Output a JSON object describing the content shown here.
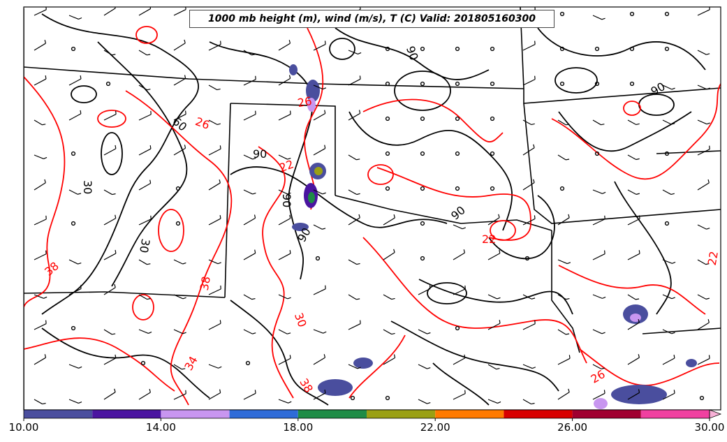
{
  "title": "1000 mb height (m), wind (m/s), T (C) Valid: 201805160300",
  "colorbar": {
    "ticks": [
      "10.00",
      "14.00",
      "18.00",
      "22.00",
      "26.00",
      "30.00"
    ],
    "bins": [
      {
        "from": 10,
        "to": 12,
        "color": "#4a4e9e"
      },
      {
        "from": 12,
        "to": 14,
        "color": "#4a14a0"
      },
      {
        "from": 14,
        "to": 16,
        "color": "#c896f0"
      },
      {
        "from": 16,
        "to": 18,
        "color": "#2e6bd8"
      },
      {
        "from": 18,
        "to": 20,
        "color": "#1e8c46"
      },
      {
        "from": 20,
        "to": 22,
        "color": "#9aa014"
      },
      {
        "from": 22,
        "to": 24,
        "color": "#ff7a00"
      },
      {
        "from": 24,
        "to": 26,
        "color": "#d80000"
      },
      {
        "from": 26,
        "to": 28,
        "color": "#a00030"
      },
      {
        "from": 28,
        "to": 30,
        "color": "#f040a0"
      }
    ]
  },
  "height_labels": [
    "90",
    "60",
    "30",
    "90",
    "30",
    "90",
    "90",
    "90",
    "90"
  ],
  "temperature_labels": [
    "26",
    "22",
    "22",
    "38",
    "38",
    "34",
    "30",
    "26",
    "38",
    "26",
    "22"
  ],
  "colors": {
    "height_contour": "#000000",
    "temperature_contour": "#ff0000",
    "border": "#000000"
  }
}
